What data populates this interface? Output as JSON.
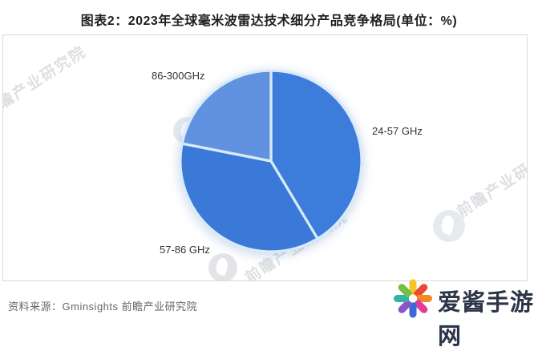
{
  "header": {
    "title": "图表2：2023年全球毫米波雷达技术细分产品竞争格局(单位：%)"
  },
  "chart_data": {
    "type": "pie",
    "title": "图表2：2023年全球毫米波雷达技术细分产品竞争格局",
    "unit": "%",
    "direction": "clockwise",
    "start_angle_deg": 0,
    "labels_position": "outside",
    "divider_color": "#D9EBF9",
    "slices": [
      {
        "label": "24-57 GHz",
        "value": 41.4,
        "color": "#3C7DDC"
      },
      {
        "label": "57-86 GHz",
        "value": 36.7,
        "color": "#3A79D8"
      },
      {
        "label": "86-300GHz",
        "value": 21.9,
        "color": "#6191E1"
      }
    ]
  },
  "watermark": {
    "text": "前瞻产业研究院"
  },
  "footer": {
    "source": "资料来源：Gminsights 前瞻产业研究院"
  },
  "brand": {
    "name": "爱酱手游网",
    "petal_colors": [
      "#F6C425",
      "#E9493B",
      "#F08A24",
      "#E13C9A",
      "#3E68D8",
      "#8C52C7",
      "#2FB3A7",
      "#74C044"
    ]
  }
}
